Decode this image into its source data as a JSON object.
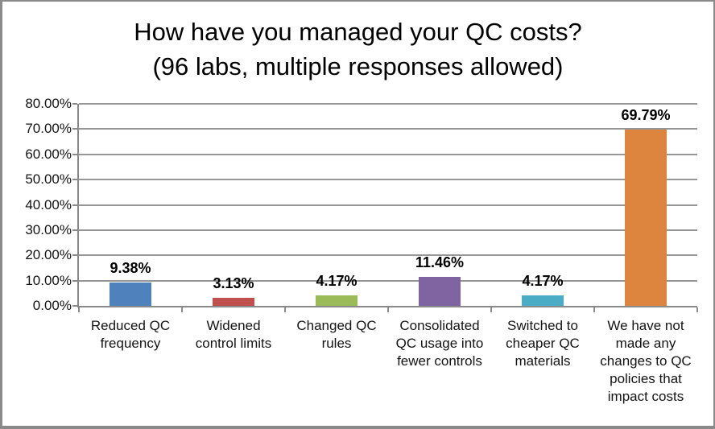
{
  "title": "How have you managed your QC costs?",
  "subtitle": "(96 labs, multiple responses allowed)",
  "styles": {
    "gridline_color": "#969696",
    "axis_color": "#8a8a8a",
    "frame_border_color": "#8a8a8a",
    "background": "#ffffff",
    "text_color": "#000000"
  },
  "chart_data": {
    "type": "bar",
    "title": "How have you managed your QC costs? (96 labs, multiple responses allowed)",
    "categories": [
      "Reduced QC\nfrequency",
      "Widened\ncontrol limits",
      "Changed QC\nrules",
      "Consolidated\nQC usage into\nfewer controls",
      "Switched to\ncheaper QC\nmaterials",
      "We have not\nmade any\nchanges to QC\npolicies that\nimpact costs"
    ],
    "values": [
      9.38,
      3.13,
      4.17,
      11.46,
      4.17,
      69.79
    ],
    "value_labels": [
      "9.38%",
      "3.13%",
      "4.17%",
      "11.46%",
      "4.17%",
      "69.79%"
    ],
    "bar_colors": [
      "#4F81BD",
      "#C0504D",
      "#9BBB59",
      "#8064A2",
      "#4BACC6",
      "#DD853E"
    ],
    "xlabel": "",
    "ylabel": "",
    "ylim": [
      0,
      80
    ],
    "ytick_step": 10,
    "ytick_labels": [
      "0.00%",
      "10.00%",
      "20.00%",
      "30.00%",
      "40.00%",
      "50.00%",
      "60.00%",
      "70.00%",
      "80.00%"
    ],
    "grid": true,
    "legend": false
  }
}
